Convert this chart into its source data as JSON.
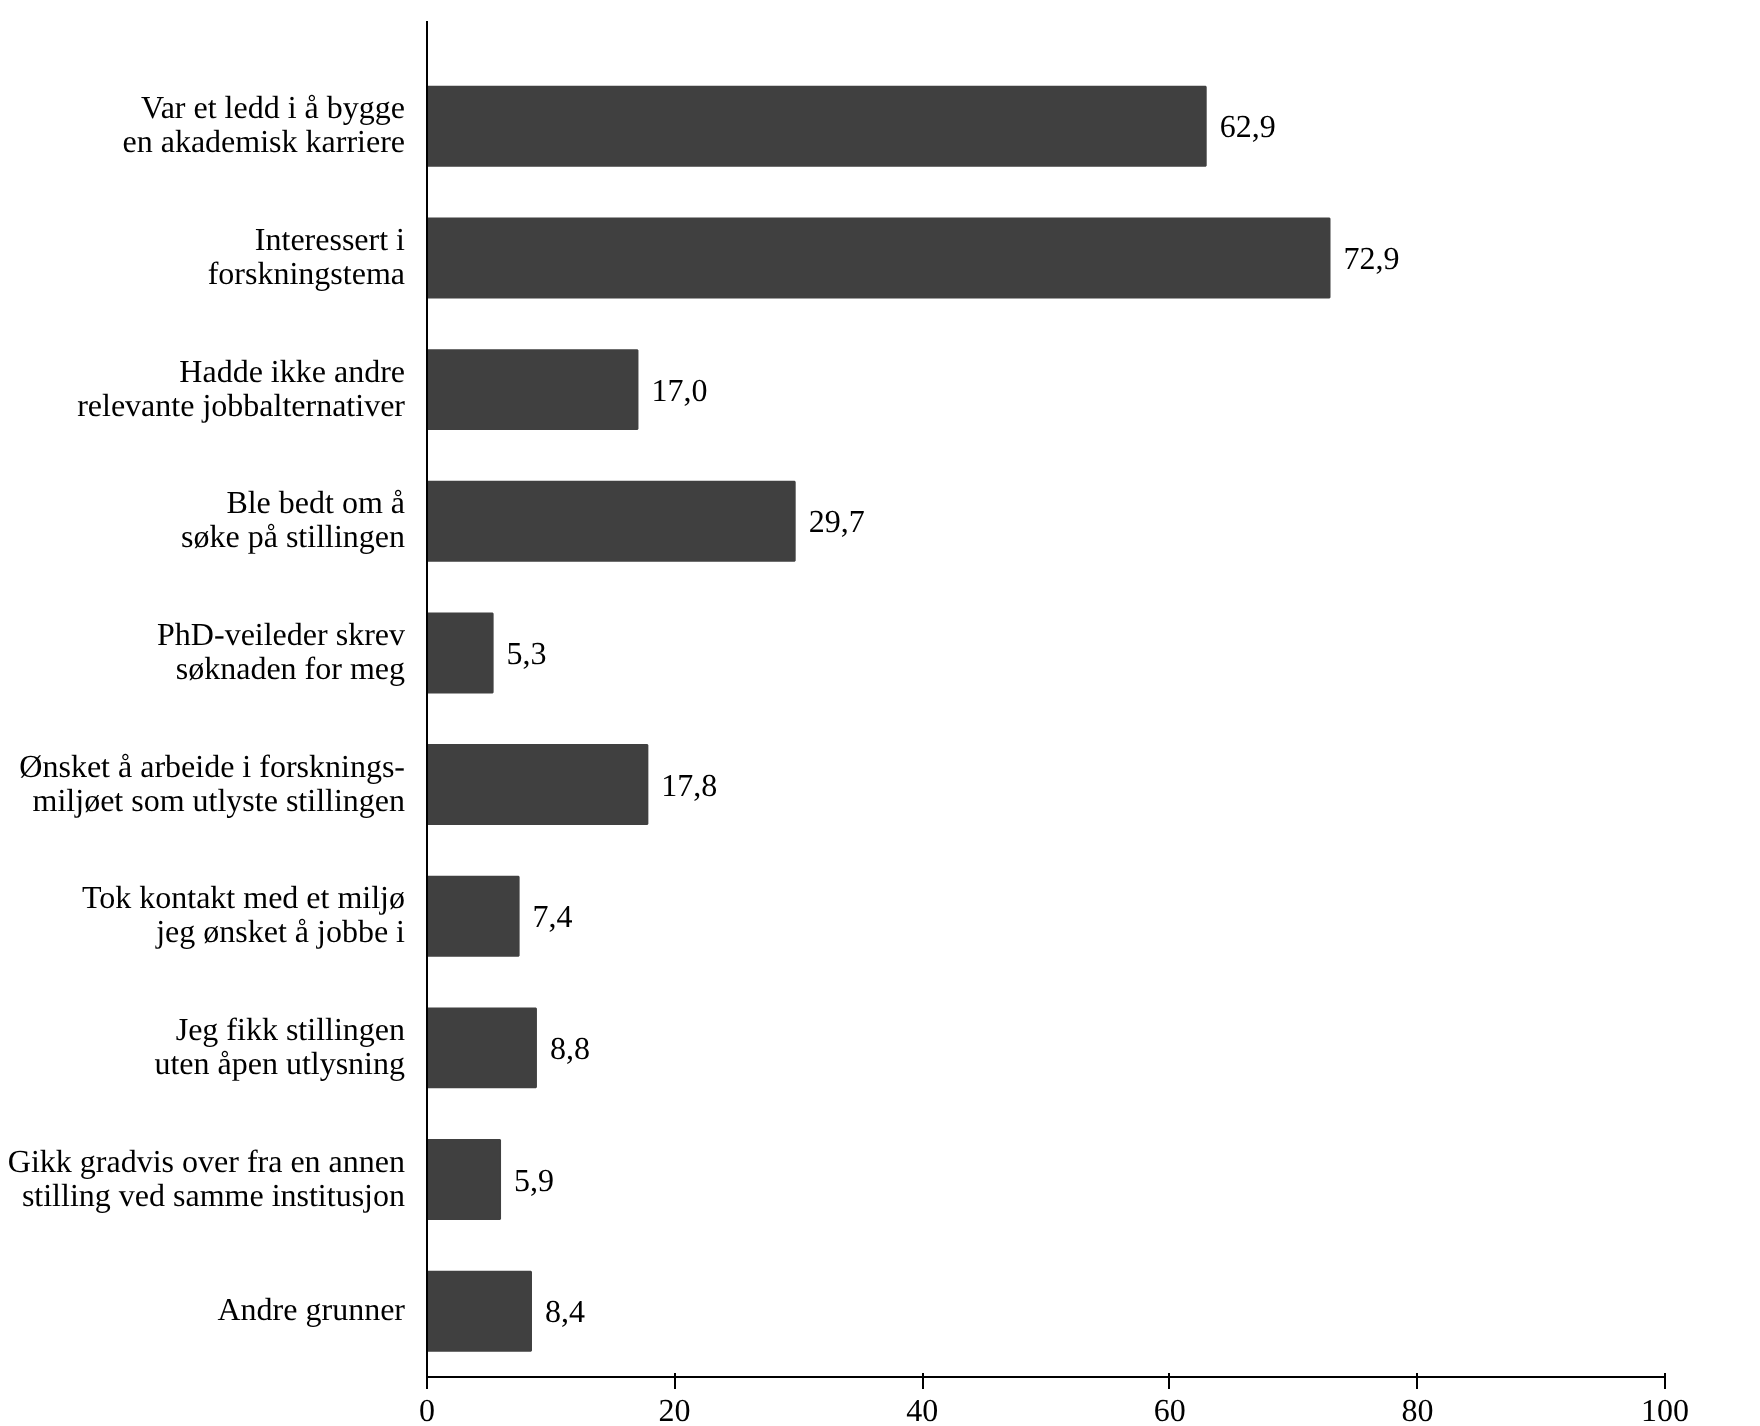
{
  "chart_data": {
    "type": "bar",
    "orientation": "horizontal",
    "categories": [
      "Var et ledd i å bygge\nen akademisk karriere",
      "Interessert i\nforskningstema",
      "Hadde ikke andre\nrelevante jobbalternativer",
      "Ble bedt om å\nsøke på stillingen",
      "PhD-veileder skrev\nsøknaden for meg",
      "Ønsket å arbeide i forsknings-\nmiljøet som utlyste stillingen",
      "Tok kontakt med et miljø\njeg ønsket å jobbe i",
      "Jeg fikk stillingen\nuten åpen utlysning",
      "Gikk gradvis over fra en annen\nstilling ved samme institusjon",
      "Andre grunner"
    ],
    "values": [
      62.9,
      72.9,
      17.0,
      29.7,
      5.3,
      17.8,
      7.4,
      8.8,
      5.9,
      8.4
    ],
    "value_labels": [
      "62,9",
      "72,9",
      "17,0",
      "29,7",
      "5,3",
      "17,8",
      "7,4",
      "8,8",
      "5,9",
      "8,4"
    ],
    "color": "#404040",
    "xlim": [
      0,
      100
    ],
    "xticks": [
      0,
      20,
      40,
      60,
      80,
      100
    ],
    "grid": false
  }
}
